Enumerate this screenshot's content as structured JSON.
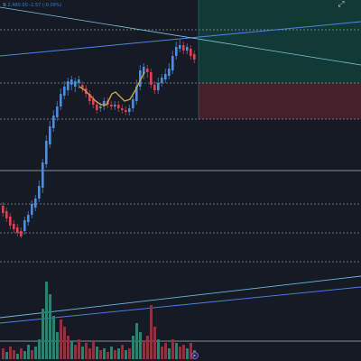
{
  "legend": {
    "symbol": "ℬ",
    "ohlc_text": "2,480.00 -1.57 (-0.09%)"
  },
  "toolbar": {
    "fullscreen_icon": "expand-icon"
  },
  "colors": {
    "background": "#161a25",
    "up_candle": "#4a90e2",
    "down_candle": "#e0424f",
    "moving_average": "#c9a24a",
    "trend_line": "#4f86e8",
    "long_target_zone": "#113a36",
    "long_stop_zone": "#46202b",
    "grid_line": "#8a8f99",
    "volume_up": "#30806f",
    "volume_down": "#8d3339"
  },
  "chart_data": {
    "type": "candlestick",
    "overlays": [
      "moving-average",
      "trend-lines",
      "horizontal-levels",
      "long-position-tool"
    ],
    "volume_panel": true
  }
}
